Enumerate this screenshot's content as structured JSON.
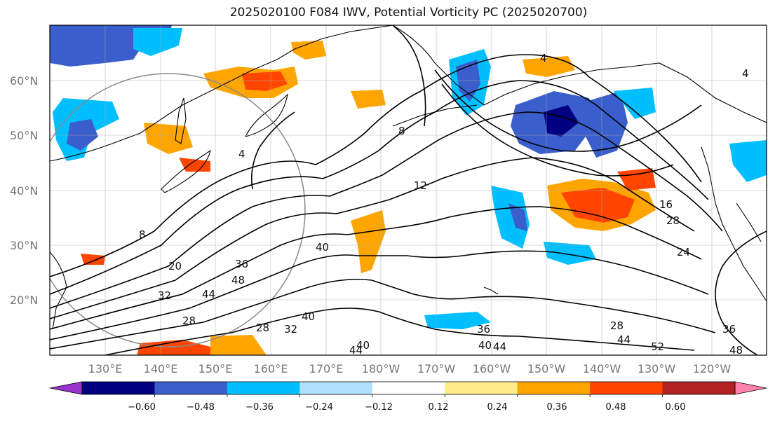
{
  "title": "2025020100 F084 IWV, Potential Vorticity PC (2025020700)",
  "lat_labels": [
    "60°N",
    "50°N",
    "40°N",
    "30°N",
    "20°N"
  ],
  "lon_labels": [
    "130°E",
    "140°E",
    "150°E",
    "160°E",
    "170°E",
    "180°W",
    "170°W",
    "160°W",
    "150°W",
    "140°W",
    "130°W",
    "120°W"
  ],
  "colorbar": {
    "tick_labels": [
      "−0.60",
      "−0.48",
      "−0.36",
      "−0.24",
      "−0.12",
      "0.12",
      "0.24",
      "0.36",
      "0.48",
      "0.60"
    ],
    "colors": [
      "#9a32cd",
      "#000080",
      "#3a5fcd",
      "#00bfff",
      "#b0e2ff",
      "#ffffff",
      "#ffec8b",
      "#ffa500",
      "#ff4500",
      "#b22222",
      "#ff82ab"
    ]
  },
  "contour_labels": [
    "4",
    "4",
    "8",
    "8",
    "12",
    "16",
    "20",
    "24",
    "28",
    "28",
    "28",
    "28",
    "32",
    "32",
    "36",
    "36",
    "36",
    "40",
    "40",
    "40",
    "40",
    "44",
    "44",
    "44",
    "44",
    "48",
    "48",
    "52",
    "4"
  ]
}
